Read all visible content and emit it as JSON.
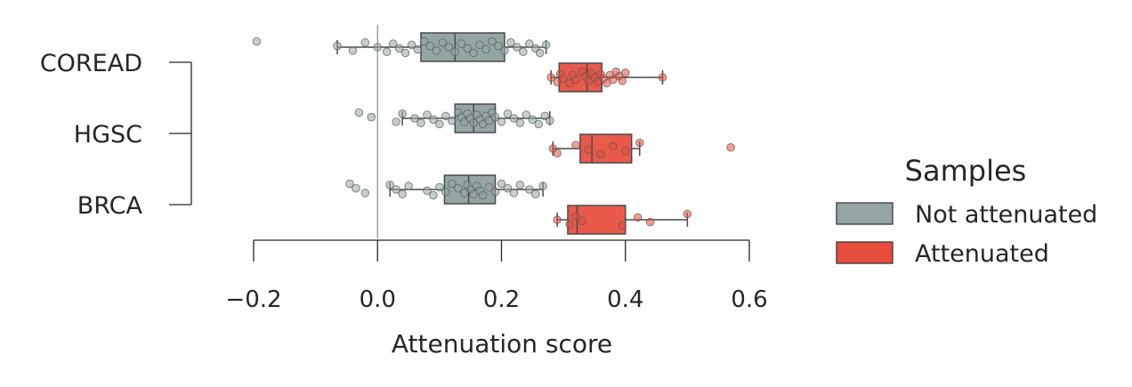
{
  "chart_data": {
    "type": "box",
    "orientation": "horizontal",
    "categories": [
      "COREAD",
      "HGSC",
      "BRCA"
    ],
    "xlabel": "Attenuation score",
    "ylabel": "",
    "xlim": [
      -0.2,
      0.6
    ],
    "xticks": [
      -0.2,
      0.0,
      0.2,
      0.4,
      0.6
    ],
    "xtick_labels": [
      "−0.2",
      "0.0",
      "0.2",
      "0.4",
      "0.6"
    ],
    "reference_line_x": 0.0,
    "grid": false,
    "legend": {
      "title": "Samples",
      "placement": "right",
      "entries": [
        "Not attenuated",
        "Attenuated"
      ]
    },
    "series": [
      {
        "name": "Not attenuated",
        "color": "#95a5a6",
        "boxes": [
          {
            "category": "COREAD",
            "whisker_low": -0.065,
            "q1": 0.07,
            "median": 0.125,
            "q3": 0.205,
            "whisker_high": 0.272,
            "points": [
              -0.195,
              -0.065,
              -0.04,
              -0.02,
              0.0,
              0.015,
              0.025,
              0.035,
              0.045,
              0.055,
              0.065,
              0.075,
              0.085,
              0.095,
              0.105,
              0.115,
              0.125,
              0.135,
              0.145,
              0.155,
              0.165,
              0.175,
              0.185,
              0.195,
              0.205,
              0.215,
              0.225,
              0.235,
              0.245,
              0.255,
              0.262,
              0.272
            ]
          },
          {
            "category": "HGSC",
            "whisker_low": 0.04,
            "q1": 0.125,
            "median": 0.155,
            "q3": 0.19,
            "whisker_high": 0.278,
            "points": [
              -0.03,
              -0.01,
              0.03,
              0.04,
              0.06,
              0.07,
              0.08,
              0.09,
              0.1,
              0.11,
              0.12,
              0.13,
              0.135,
              0.14,
              0.145,
              0.15,
              0.155,
              0.16,
              0.165,
              0.17,
              0.175,
              0.18,
              0.185,
              0.19,
              0.2,
              0.21,
              0.22,
              0.23,
              0.24,
              0.25,
              0.26,
              0.27,
              0.278
            ]
          },
          {
            "category": "BRCA",
            "whisker_low": 0.02,
            "q1": 0.108,
            "median": 0.147,
            "q3": 0.19,
            "whisker_high": 0.267,
            "points": [
              -0.045,
              -0.035,
              -0.02,
              0.02,
              0.03,
              0.04,
              0.05,
              0.08,
              0.09,
              0.1,
              0.11,
              0.12,
              0.13,
              0.14,
              0.145,
              0.15,
              0.155,
              0.16,
              0.165,
              0.17,
              0.18,
              0.19,
              0.2,
              0.21,
              0.22,
              0.23,
              0.245,
              0.255,
              0.267
            ]
          }
        ]
      },
      {
        "name": "Attenuated",
        "color": "#e74c3c",
        "boxes": [
          {
            "category": "COREAD",
            "whisker_low": 0.28,
            "q1": 0.293,
            "median": 0.338,
            "q3": 0.362,
            "whisker_high": 0.46,
            "points": [
              0.28,
              0.29,
              0.295,
              0.3,
              0.31,
              0.315,
              0.32,
              0.33,
              0.335,
              0.34,
              0.345,
              0.35,
              0.355,
              0.36,
              0.365,
              0.37,
              0.375,
              0.38,
              0.385,
              0.39,
              0.395,
              0.4,
              0.46
            ]
          },
          {
            "category": "HGSC",
            "whisker_low": 0.283,
            "q1": 0.327,
            "median": 0.346,
            "q3": 0.41,
            "whisker_high": 0.423,
            "points": [
              0.283,
              0.29,
              0.32,
              0.34,
              0.36,
              0.38,
              0.4,
              0.423,
              0.57
            ]
          },
          {
            "category": "BRCA",
            "whisker_low": 0.29,
            "q1": 0.307,
            "median": 0.322,
            "q3": 0.4,
            "whisker_high": 0.5,
            "points": [
              0.29,
              0.31,
              0.32,
              0.33,
              0.395,
              0.42,
              0.44,
              0.5
            ]
          }
        ]
      }
    ]
  }
}
